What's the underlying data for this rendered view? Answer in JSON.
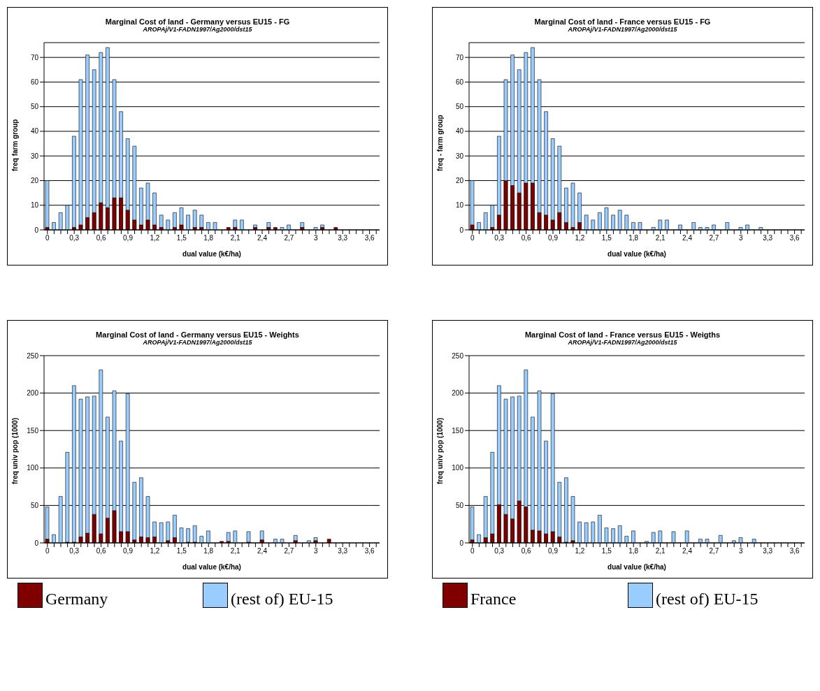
{
  "chart_data": [
    {
      "type": "bar",
      "title": "Marginal Cost of land - Germany versus EU15 - FG",
      "subtitle": "AROPAj/V1-FADN1997/Ag2000/dst15",
      "xlabel": "dual value (k€/ha)",
      "ylabel": "freq farm group",
      "categories": [
        "0",
        null,
        null,
        null,
        "0,3",
        null,
        null,
        null,
        "0,6",
        null,
        null,
        null,
        "0,9",
        null,
        null,
        null,
        "1,2",
        null,
        null,
        null,
        "1,5",
        null,
        null,
        null,
        "1,8",
        null,
        null,
        null,
        "2,1",
        null,
        null,
        null,
        "2,4",
        null,
        null,
        null,
        "2,7",
        null,
        null,
        null,
        "3",
        null,
        null,
        null,
        "3,3",
        null,
        null,
        null,
        "3,6",
        null
      ],
      "series": [
        {
          "color": "#99ccff",
          "values": [
            20,
            3,
            7,
            10,
            38,
            61,
            71,
            65,
            72,
            74,
            61,
            48,
            37,
            34,
            17,
            19,
            15,
            6,
            4,
            7,
            9,
            6,
            8,
            6,
            3,
            3,
            0,
            null,
            4,
            4,
            0,
            2,
            0,
            3,
            null,
            1,
            2,
            0,
            3,
            0,
            1,
            2,
            0,
            null,
            0,
            0,
            0,
            0,
            0,
            0
          ]
        },
        {
          "color": "#800000",
          "values": [
            1,
            0,
            0,
            0,
            1,
            2,
            5,
            7,
            11,
            9,
            13,
            13,
            8,
            4,
            2,
            4,
            2,
            1,
            0,
            1,
            2,
            0,
            1,
            1,
            0,
            0,
            0,
            1,
            1,
            0,
            0,
            1,
            0,
            1,
            1,
            0,
            0,
            0,
            1,
            0,
            0,
            1,
            0,
            1,
            0,
            0,
            0,
            0,
            0,
            0
          ]
        }
      ],
      "ylim": [
        0,
        76
      ],
      "yticks": [
        0,
        10,
        20,
        30,
        40,
        50,
        60,
        70
      ],
      "grid": "y",
      "legend": false
    },
    {
      "type": "bar",
      "title": "Marginal Cost of land - France versus EU15 - FG",
      "subtitle": "AROPAj/V1-FADN1997/Ag2000/dst15",
      "xlabel": "dual value (k€/ha)",
      "ylabel": "freq - farm group",
      "categories": [
        "0",
        null,
        null,
        null,
        "0,3",
        null,
        null,
        null,
        "0,6",
        null,
        null,
        null,
        "0,9",
        null,
        null,
        null,
        "1,2",
        null,
        null,
        null,
        "1,5",
        null,
        null,
        null,
        "1,8",
        null,
        null,
        null,
        "2,1",
        null,
        null,
        null,
        "2,4",
        null,
        null,
        null,
        "2,7",
        null,
        null,
        null,
        "3",
        null,
        null,
        null,
        "3,3",
        null,
        null,
        null,
        "3,6",
        null
      ],
      "series": [
        {
          "color": "#99ccff",
          "values": [
            20,
            3,
            7,
            10,
            38,
            61,
            71,
            65,
            72,
            74,
            61,
            48,
            37,
            34,
            17,
            19,
            15,
            6,
            4,
            7,
            9,
            6,
            8,
            6,
            3,
            3,
            0,
            1,
            4,
            4,
            0,
            2,
            0,
            3,
            1,
            1,
            2,
            0,
            3,
            0,
            1,
            2,
            0,
            1,
            0,
            0,
            0,
            0,
            0,
            0
          ]
        },
        {
          "color": "#800000",
          "values": [
            2,
            0,
            0,
            1,
            6,
            20,
            18,
            15,
            19,
            19,
            7,
            6,
            4,
            7,
            3,
            1,
            3,
            0,
            0,
            0,
            0,
            0,
            0,
            0,
            0,
            0,
            0,
            0,
            0,
            0,
            0,
            0,
            0,
            0,
            0,
            0,
            0,
            0,
            0,
            0,
            0,
            0,
            0,
            0,
            0,
            0,
            0,
            0,
            0,
            0
          ]
        }
      ],
      "ylim": [
        0,
        76
      ],
      "yticks": [
        0,
        10,
        20,
        30,
        40,
        50,
        60,
        70
      ],
      "grid": "y",
      "legend": false
    },
    {
      "type": "bar",
      "title": "Marginal Cost of land - Germany versus EU15 - Weights",
      "subtitle": "AROPAj/V1-FADN1997/Ag2000/dst15",
      "xlabel": "dual value (k€/ha)",
      "ylabel": "freq univ pop (1000)",
      "categories": [
        "0",
        null,
        null,
        null,
        "0,3",
        null,
        null,
        null,
        "0,6",
        null,
        null,
        null,
        "0,9",
        null,
        null,
        null,
        "1,2",
        null,
        null,
        null,
        "1,5",
        null,
        null,
        null,
        "1,8",
        null,
        null,
        null,
        "2,1",
        null,
        null,
        null,
        "2,4",
        null,
        null,
        null,
        "2,7",
        null,
        null,
        null,
        "3",
        null,
        null,
        null,
        "3,3",
        null,
        null,
        null,
        "3,6",
        null
      ],
      "series": [
        {
          "name": "(rest of) EU-15",
          "color": "#99ccff",
          "values": [
            48,
            11,
            62,
            121,
            210,
            192,
            195,
            196,
            231,
            168,
            203,
            136,
            199,
            81,
            87,
            62,
            28,
            27,
            28,
            37,
            20,
            19,
            23,
            9,
            16,
            0,
            null,
            14,
            16,
            0,
            15,
            0,
            16,
            0,
            5,
            5,
            0,
            10,
            0,
            3,
            7,
            0,
            null,
            0,
            0,
            0,
            0,
            0,
            0,
            0
          ]
        },
        {
          "name": "Germany",
          "color": "#800000",
          "values": [
            5,
            0,
            0,
            1,
            1,
            8,
            13,
            38,
            12,
            33,
            43,
            15,
            15,
            4,
            8,
            7,
            8,
            0,
            3,
            7,
            0,
            1,
            1,
            0,
            0,
            0,
            2,
            2,
            0,
            0,
            1,
            0,
            4,
            0,
            0,
            0,
            0,
            3,
            0,
            0,
            3,
            0,
            5,
            0,
            0,
            0,
            0,
            0,
            0,
            0
          ]
        }
      ],
      "ylim": [
        0,
        250
      ],
      "yticks": [
        0,
        50,
        100,
        150,
        200,
        250
      ],
      "grid": "y",
      "legend": "bottom"
    },
    {
      "type": "bar",
      "title": "Marginal Cost of land - France versus EU15 - Weigths",
      "subtitle": "AROPAj/V1-FADN1997/Ag2000/dst15",
      "xlabel": "dual value (k€/ha)",
      "ylabel": "freq univ pop (1000)",
      "categories": [
        "0",
        null,
        null,
        null,
        "0,3",
        null,
        null,
        null,
        "0,6",
        null,
        null,
        null,
        "0,9",
        null,
        null,
        null,
        "1,2",
        null,
        null,
        null,
        "1,5",
        null,
        null,
        null,
        "1,8",
        null,
        null,
        null,
        "2,1",
        null,
        null,
        null,
        "2,4",
        null,
        null,
        null,
        "2,7",
        null,
        null,
        null,
        "3",
        null,
        null,
        null,
        "3,3",
        null,
        null,
        null,
        "3,6",
        null
      ],
      "series": [
        {
          "name": "(rest of) EU-15",
          "color": "#99ccff",
          "values": [
            48,
            11,
            62,
            121,
            210,
            192,
            195,
            196,
            231,
            168,
            203,
            136,
            199,
            81,
            87,
            62,
            28,
            27,
            28,
            37,
            20,
            19,
            23,
            9,
            16,
            0,
            2,
            14,
            16,
            0,
            15,
            0,
            16,
            0,
            5,
            5,
            0,
            10,
            0,
            3,
            7,
            0,
            5,
            0,
            0,
            0,
            0,
            0,
            0,
            0
          ]
        },
        {
          "name": "France",
          "color": "#800000",
          "values": [
            4,
            0,
            7,
            12,
            51,
            38,
            32,
            56,
            48,
            17,
            16,
            12,
            15,
            8,
            1,
            3,
            0,
            0,
            0,
            0,
            0,
            0,
            0,
            0,
            0,
            0,
            0,
            0,
            0,
            0,
            0,
            0,
            0,
            0,
            0,
            0,
            0,
            0,
            0,
            0,
            0,
            0,
            0,
            0,
            0,
            0,
            0,
            0,
            0,
            0
          ]
        }
      ],
      "ylim": [
        0,
        250
      ],
      "yticks": [
        0,
        50,
        100,
        150,
        200,
        250
      ],
      "grid": "y",
      "legend": "bottom"
    }
  ]
}
